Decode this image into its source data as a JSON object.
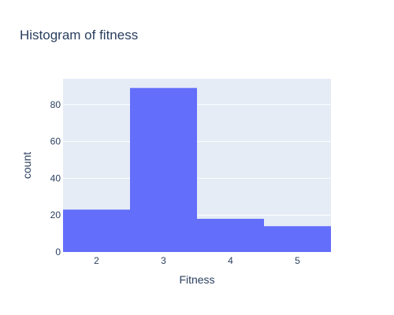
{
  "chart_data": {
    "type": "bar",
    "title": "Histogram of fitness",
    "xlabel": "Fitness",
    "ylabel": "count",
    "categories": [
      "2",
      "3",
      "4",
      "5"
    ],
    "values": [
      23,
      89,
      18,
      14
    ],
    "ylim": [
      0,
      94
    ],
    "yticks": [
      0,
      20,
      40,
      60,
      80
    ],
    "grid": true,
    "legend": "none",
    "colors": {
      "bar": "#636efa",
      "plot_bg": "#e5ecf6",
      "grid": "#ffffff",
      "text": "#2a3f5f"
    }
  }
}
